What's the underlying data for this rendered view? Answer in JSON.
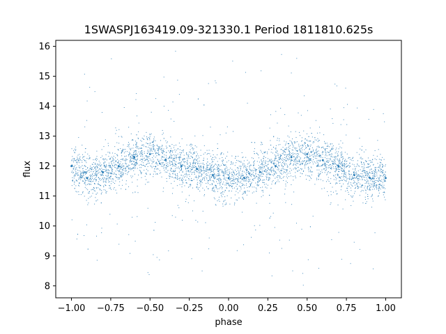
{
  "chart_data": {
    "type": "scatter",
    "title": "1SWASPJ163419.09-321330.1 Period 1811810.625s",
    "xlabel": "phase",
    "ylabel": "flux",
    "xlim": [
      -1.1,
      1.1
    ],
    "ylim": [
      7.6,
      16.2
    ],
    "x_ticks": [
      -1.0,
      -0.75,
      -0.5,
      -0.25,
      0.0,
      0.25,
      0.5,
      0.75,
      1.0
    ],
    "x_tick_labels": [
      "−1.00",
      "−0.75",
      "−0.50",
      "−0.25",
      "0.00",
      "0.25",
      "0.50",
      "0.75",
      "1.00"
    ],
    "y_ticks": [
      8,
      9,
      10,
      11,
      12,
      13,
      14,
      15,
      16
    ],
    "y_tick_labels": [
      "8",
      "9",
      "10",
      "11",
      "12",
      "13",
      "14",
      "15",
      "16"
    ],
    "grid": false,
    "point_color": "#1f77b4",
    "series": [
      {
        "x": [
          -1.0,
          -0.9,
          -0.8,
          -0.7,
          -0.6,
          -0.5,
          -0.4,
          -0.3,
          -0.2,
          -0.1,
          0.0,
          0.1,
          0.2,
          0.3,
          0.4,
          0.5,
          0.6,
          0.7,
          0.8,
          0.9,
          1.0
        ],
        "y": [
          12.0,
          11.6,
          11.8,
          12.0,
          12.3,
          12.4,
          12.2,
          12.0,
          11.9,
          11.7,
          11.6,
          11.6,
          11.8,
          12.0,
          12.3,
          12.4,
          12.2,
          12.0,
          11.7,
          11.6,
          11.6
        ]
      }
    ]
  }
}
